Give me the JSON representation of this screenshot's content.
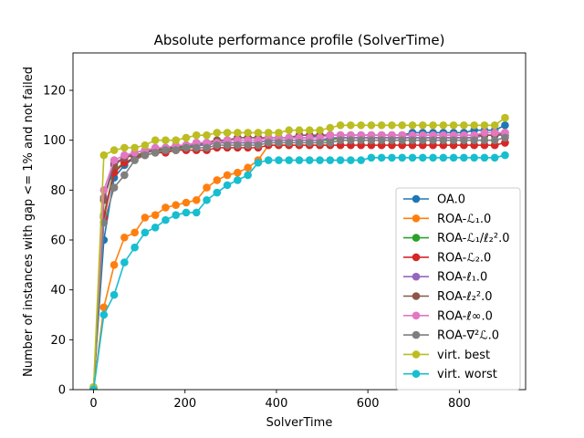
{
  "chart_data": {
    "type": "line",
    "title": "Absolute performance profile (SolverTime)",
    "xlabel": "SolverTime",
    "ylabel": "Number of instances with gap <= 1% and not failed",
    "xlim": [
      -45,
      945
    ],
    "ylim": [
      0,
      135
    ],
    "xticks": [
      0,
      200,
      400,
      600,
      800
    ],
    "yticks": [
      0,
      20,
      40,
      60,
      80,
      100,
      120
    ],
    "grid": false,
    "legend_position": "lower-right",
    "x": [
      0,
      22.5,
      45,
      67.5,
      90,
      112.5,
      135,
      157.5,
      180,
      202.5,
      225,
      247.5,
      270,
      292.5,
      315,
      337.5,
      360,
      382.5,
      405,
      427.5,
      450,
      472.5,
      495,
      517.5,
      540,
      562.5,
      585,
      607.5,
      630,
      652.5,
      675,
      697.5,
      720,
      742.5,
      765,
      787.5,
      810,
      832.5,
      855,
      877.5,
      900
    ],
    "series": [
      {
        "name": "OA.0",
        "color": "#1f77b4",
        "values": [
          1,
          60,
          85,
          90,
          93,
          95,
          96,
          97,
          97,
          98,
          98,
          99,
          99,
          100,
          100,
          100,
          100,
          101,
          101,
          101,
          101,
          101,
          102,
          102,
          102,
          102,
          102,
          102,
          102,
          102,
          102,
          103,
          103,
          103,
          103,
          103,
          103,
          104,
          104,
          104,
          106
        ]
      },
      {
        "name": "ROA-ℒ₁.0",
        "color": "#ff7f0e",
        "values": [
          0,
          33,
          50,
          61,
          63,
          69,
          70,
          73,
          74,
          75,
          76,
          81,
          84,
          86,
          87,
          89,
          92,
          98,
          98,
          98,
          98,
          98,
          98,
          98,
          98,
          98,
          98,
          98,
          98,
          98,
          98,
          98,
          98,
          98,
          98,
          98,
          98,
          98,
          98,
          98,
          99
        ]
      },
      {
        "name": "ROA-ℒ₁/ℓ₂².0",
        "color": "#2ca02c",
        "values": [
          0,
          70,
          88,
          91,
          93,
          95,
          96,
          96,
          97,
          97,
          98,
          98,
          99,
          99,
          99,
          99,
          99,
          100,
          100,
          100,
          100,
          100,
          100,
          100,
          101,
          101,
          101,
          101,
          101,
          101,
          101,
          101,
          101,
          101,
          101,
          101,
          101,
          101,
          102,
          102,
          102
        ]
      },
      {
        "name": "ROA-ℒ₂.0",
        "color": "#d62728",
        "values": [
          0,
          69,
          87,
          91,
          93,
          94,
          95,
          95,
          96,
          96,
          96,
          96,
          97,
          97,
          97,
          97,
          97,
          98,
          98,
          98,
          98,
          98,
          98,
          98,
          98,
          98,
          98,
          98,
          98,
          98,
          98,
          98,
          98,
          98,
          98,
          98,
          98,
          98,
          98,
          98,
          99
        ]
      },
      {
        "name": "ROA-ℓ₁.0",
        "color": "#9467bd",
        "values": [
          0,
          77,
          91,
          93,
          95,
          96,
          96,
          97,
          97,
          98,
          98,
          98,
          99,
          99,
          99,
          99,
          99,
          100,
          100,
          100,
          100,
          100,
          100,
          101,
          101,
          101,
          101,
          101,
          101,
          101,
          101,
          101,
          101,
          101,
          101,
          101,
          101,
          101,
          102,
          102,
          102
        ]
      },
      {
        "name": "ROA-ℓ₂².0",
        "color": "#8c564b",
        "values": [
          0,
          76,
          90,
          93,
          94,
          95,
          96,
          97,
          97,
          98,
          99,
          99,
          100,
          100,
          101,
          101,
          101,
          101,
          101,
          101,
          102,
          102,
          102,
          102,
          102,
          102,
          102,
          102,
          102,
          102,
          102,
          102,
          102,
          102,
          102,
          102,
          102,
          102,
          102,
          102,
          103
        ]
      },
      {
        "name": "ROA-ℓ∞.0",
        "color": "#e377c2",
        "values": [
          0,
          80,
          92,
          94,
          95,
          96,
          97,
          97,
          98,
          98,
          99,
          99,
          99,
          100,
          100,
          100,
          100,
          101,
          101,
          101,
          101,
          101,
          101,
          102,
          102,
          102,
          102,
          102,
          102,
          102,
          102,
          102,
          102,
          102,
          102,
          102,
          102,
          102,
          103,
          103,
          103
        ]
      },
      {
        "name": "ROA-∇²ℒ.0",
        "color": "#7f7f7f",
        "values": [
          0,
          67,
          81,
          86,
          92,
          94,
          95,
          96,
          96,
          97,
          97,
          97,
          98,
          98,
          98,
          98,
          98,
          99,
          99,
          99,
          99,
          99,
          99,
          99,
          100,
          100,
          100,
          100,
          100,
          100,
          100,
          100,
          100,
          100,
          100,
          100,
          100,
          100,
          100,
          100,
          101
        ]
      },
      {
        "name": "virt. best",
        "color": "#bcbd22",
        "values": [
          1,
          94,
          96,
          97,
          97,
          98,
          100,
          100,
          100,
          101,
          102,
          102,
          103,
          103,
          103,
          103,
          103,
          103,
          103,
          104,
          104,
          104,
          104,
          105,
          106,
          106,
          106,
          106,
          106,
          106,
          106,
          106,
          106,
          106,
          106,
          106,
          106,
          106,
          106,
          106,
          109
        ]
      },
      {
        "name": "virt. worst",
        "color": "#17becf",
        "values": [
          0,
          30,
          38,
          51,
          57,
          63,
          65,
          68,
          70,
          71,
          71,
          76,
          79,
          82,
          84,
          86,
          91,
          92,
          92,
          92,
          92,
          92,
          92,
          92,
          92,
          92,
          92,
          93,
          93,
          93,
          93,
          93,
          93,
          93,
          93,
          93,
          93,
          93,
          93,
          93,
          94
        ]
      }
    ]
  }
}
